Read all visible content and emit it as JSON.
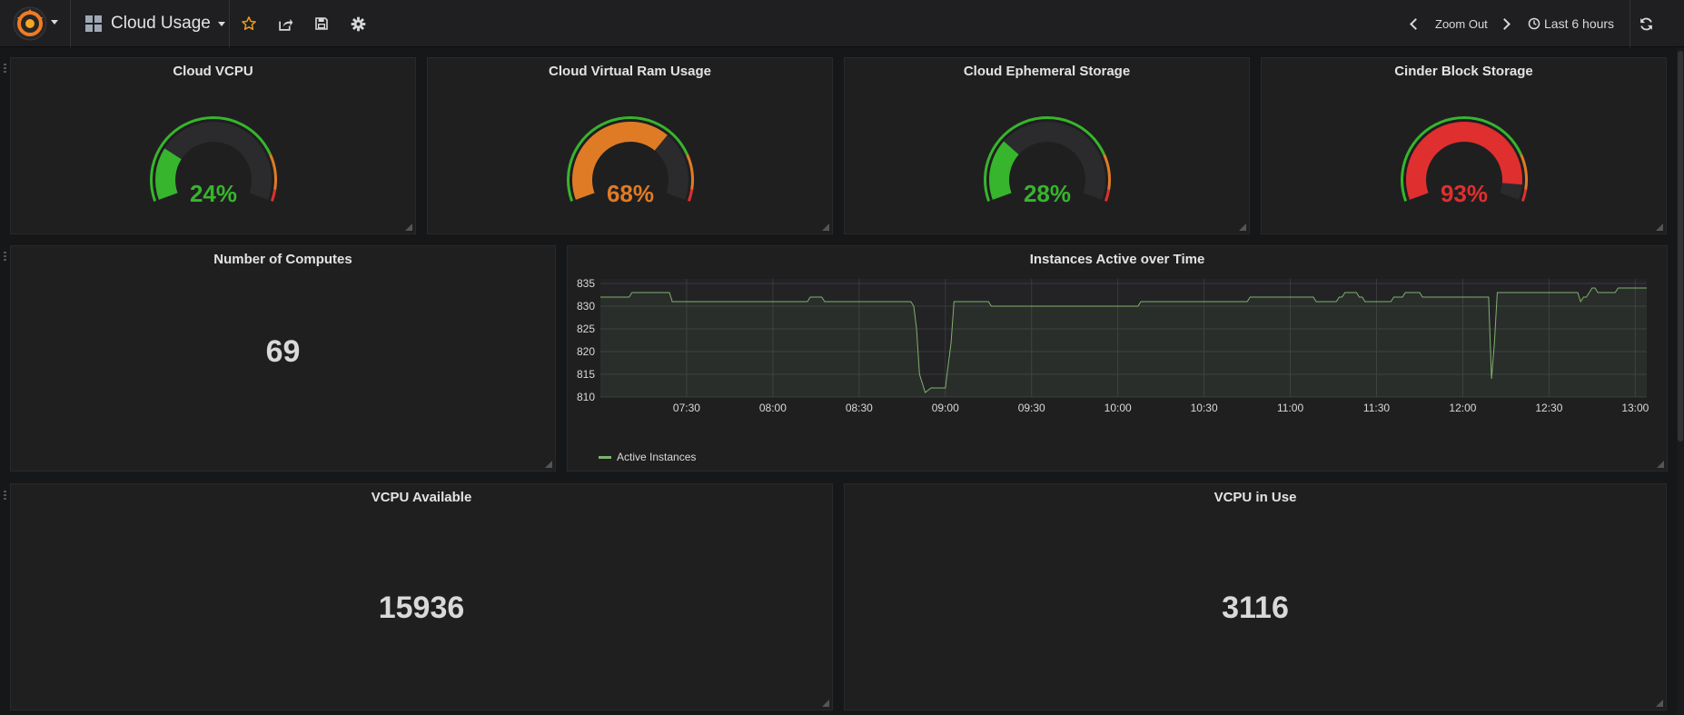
{
  "navbar": {
    "logo_icon": "grafana-logo-icon",
    "dashboard_title": "Cloud Usage",
    "zoom_out_label": "Zoom Out",
    "time_range_label": "Last 6 hours",
    "icons": [
      "dashboard-grid-icon",
      "star-icon",
      "share-icon",
      "save-icon",
      "gear-icon",
      "chevron-left-icon",
      "chevron-right-icon",
      "clock-icon",
      "refresh-icon"
    ]
  },
  "colors": {
    "green": "#37b52d",
    "orange": "#e07b25",
    "red": "#e02f2f",
    "series": "#7eb26d"
  },
  "gauges": [
    {
      "title": "Cloud VCPU",
      "value": 24,
      "display": "24%",
      "color": "#37b52d"
    },
    {
      "title": "Cloud Virtual Ram Usage",
      "value": 68,
      "display": "68%",
      "color": "#e07b25"
    },
    {
      "title": "Cloud Ephemeral Storage",
      "value": 28,
      "display": "28%",
      "color": "#37b52d"
    },
    {
      "title": "Cinder Block Storage",
      "value": 93,
      "display": "93%",
      "color": "#e02f2f"
    }
  ],
  "computes": {
    "title": "Number of Computes",
    "value": "69"
  },
  "vcpu_available": {
    "title": "VCPU Available",
    "value": "15936"
  },
  "vcpu_in_use": {
    "title": "VCPU in Use",
    "value": "3116"
  },
  "graph": {
    "title": "Instances Active over Time",
    "legend": "Active Instances"
  },
  "chart_data": {
    "type": "line",
    "title": "Instances Active over Time",
    "xlabel": "",
    "ylabel": "",
    "x_ticks": [
      "07:30",
      "08:00",
      "08:30",
      "09:00",
      "09:30",
      "10:00",
      "10:30",
      "11:00",
      "11:30",
      "12:00",
      "12:30",
      "13:00"
    ],
    "y_ticks": [
      810,
      815,
      820,
      825,
      830,
      835
    ],
    "xlim": [
      "07:00",
      "13:04"
    ],
    "ylim": [
      810,
      836
    ],
    "grid": true,
    "legend_position": "bottom-left",
    "series": [
      {
        "name": "Active Instances",
        "color": "#7eb26d",
        "x": [
          "07:00",
          "07:10",
          "07:11",
          "07:24",
          "07:25",
          "08:12",
          "08:13",
          "08:17",
          "08:18",
          "08:48",
          "08:49",
          "08:50",
          "08:51",
          "08:52",
          "08:53",
          "08:55",
          "09:00",
          "09:01",
          "09:02",
          "09:03",
          "09:05",
          "09:15",
          "09:16",
          "09:40",
          "09:41",
          "10:07",
          "10:08",
          "10:22",
          "10:23",
          "10:45",
          "10:46",
          "11:08",
          "11:09",
          "11:12",
          "11:13",
          "11:16",
          "11:17",
          "11:18",
          "11:19",
          "11:23",
          "11:24",
          "11:25",
          "11:26",
          "11:35",
          "11:36",
          "11:38",
          "11:39",
          "11:40",
          "11:41",
          "11:45",
          "11:46",
          "12:08",
          "12:09",
          "12:10",
          "12:11",
          "12:12",
          "12:21",
          "12:22",
          "12:40",
          "12:41",
          "12:42",
          "12:43",
          "12:45",
          "12:46",
          "12:47",
          "12:52",
          "12:53",
          "12:54",
          "12:55",
          "12:58",
          "12:59",
          "13:04"
        ],
        "y": [
          832,
          832,
          833,
          833,
          831,
          831,
          832,
          832,
          831,
          831,
          830,
          825,
          815,
          813,
          811,
          812,
          812,
          817,
          822,
          831,
          831,
          831,
          830,
          830,
          830,
          830,
          831,
          831,
          831,
          831,
          832,
          832,
          831,
          831,
          831,
          831,
          832,
          832,
          833,
          833,
          832,
          832,
          831,
          831,
          832,
          832,
          832,
          833,
          833,
          833,
          832,
          832,
          832,
          814,
          822,
          833,
          833,
          833,
          833,
          831,
          832,
          832,
          834,
          834,
          833,
          833,
          833,
          834,
          834,
          834,
          834,
          834
        ]
      }
    ]
  }
}
